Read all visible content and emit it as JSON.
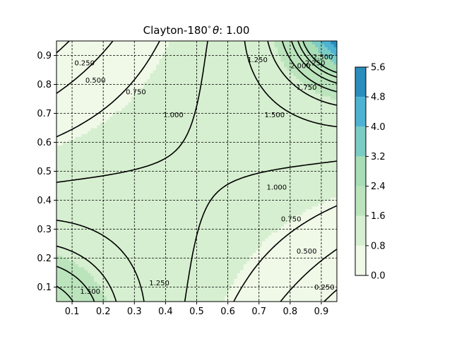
{
  "chart_data": {
    "type": "contour",
    "title": "Clayton-180°, θ: 1.00",
    "title_parts": {
      "copula": "Clayton-180",
      "degree": "°",
      "theta_label": "θ",
      "theta_sep": ": ",
      "theta_value": "1.00"
    },
    "xlabel": "",
    "ylabel": "",
    "xlim": [
      0.05,
      0.95
    ],
    "ylim": [
      0.05,
      0.95
    ],
    "x_ticks": [
      "0.1",
      "0.2",
      "0.3",
      "0.4",
      "0.5",
      "0.6",
      "0.7",
      "0.8",
      "0.9"
    ],
    "y_ticks": [
      "0.1",
      "0.2",
      "0.3",
      "0.4",
      "0.5",
      "0.6",
      "0.7",
      "0.8",
      "0.9"
    ],
    "grid": true,
    "grid_style": "dashed",
    "colorbar": {
      "ticks": [
        "0.0",
        "0.8",
        "1.6",
        "2.4",
        "3.2",
        "4.0",
        "4.8",
        "5.6"
      ],
      "range": [
        0.0,
        5.6
      ],
      "colors": [
        "#f0f9e8",
        "#d6efd0",
        "#bbe4bc",
        "#a8ddb5",
        "#7bccc4",
        "#4eb3d3",
        "#2b8cbe",
        "#3a76ac"
      ]
    },
    "fill_bands": [
      {
        "range": [
          0.0,
          0.8
        ],
        "color": "#f0f9e8"
      },
      {
        "range": [
          0.8,
          1.6
        ],
        "color": "#d6efd0"
      },
      {
        "range": [
          1.6,
          2.4
        ],
        "color": "#bbe4bc"
      },
      {
        "range": [
          2.4,
          3.2
        ],
        "color": "#a8ddb5"
      },
      {
        "range": [
          3.2,
          4.0
        ],
        "color": "#7bccc4"
      },
      {
        "range": [
          4.0,
          4.8
        ],
        "color": "#4eb3d3"
      },
      {
        "range": [
          4.8,
          5.6
        ],
        "color": "#2b8cbe"
      }
    ],
    "contour_levels": [
      0.25,
      0.5,
      0.75,
      1.0,
      1.25,
      1.5,
      1.75,
      2.0,
      2.25,
      2.5
    ],
    "contour_labels": [
      {
        "text": "0.250",
        "x": 0.14,
        "y": 0.875
      },
      {
        "text": "0.500",
        "x": 0.175,
        "y": 0.815
      },
      {
        "text": "0.750",
        "x": 0.305,
        "y": 0.775
      },
      {
        "text": "1.000",
        "x": 0.425,
        "y": 0.695
      },
      {
        "text": "1.250",
        "x": 0.695,
        "y": 0.885
      },
      {
        "text": "1.500",
        "x": 0.75,
        "y": 0.695
      },
      {
        "text": "1.750",
        "x": 0.853,
        "y": 0.79
      },
      {
        "text": "2.000",
        "x": 0.833,
        "y": 0.865
      },
      {
        "text": "2.250",
        "x": 0.88,
        "y": 0.875
      },
      {
        "text": "2.500",
        "x": 0.905,
        "y": 0.895
      },
      {
        "text": "1.000",
        "x": 0.757,
        "y": 0.445
      },
      {
        "text": "0.750",
        "x": 0.803,
        "y": 0.335
      },
      {
        "text": "0.500",
        "x": 0.853,
        "y": 0.225
      },
      {
        "text": "0.250",
        "x": 0.91,
        "y": 0.1
      },
      {
        "text": "1.250",
        "x": 0.38,
        "y": 0.115
      },
      {
        "text": "1.500",
        "x": 0.158,
        "y": 0.085
      }
    ]
  }
}
